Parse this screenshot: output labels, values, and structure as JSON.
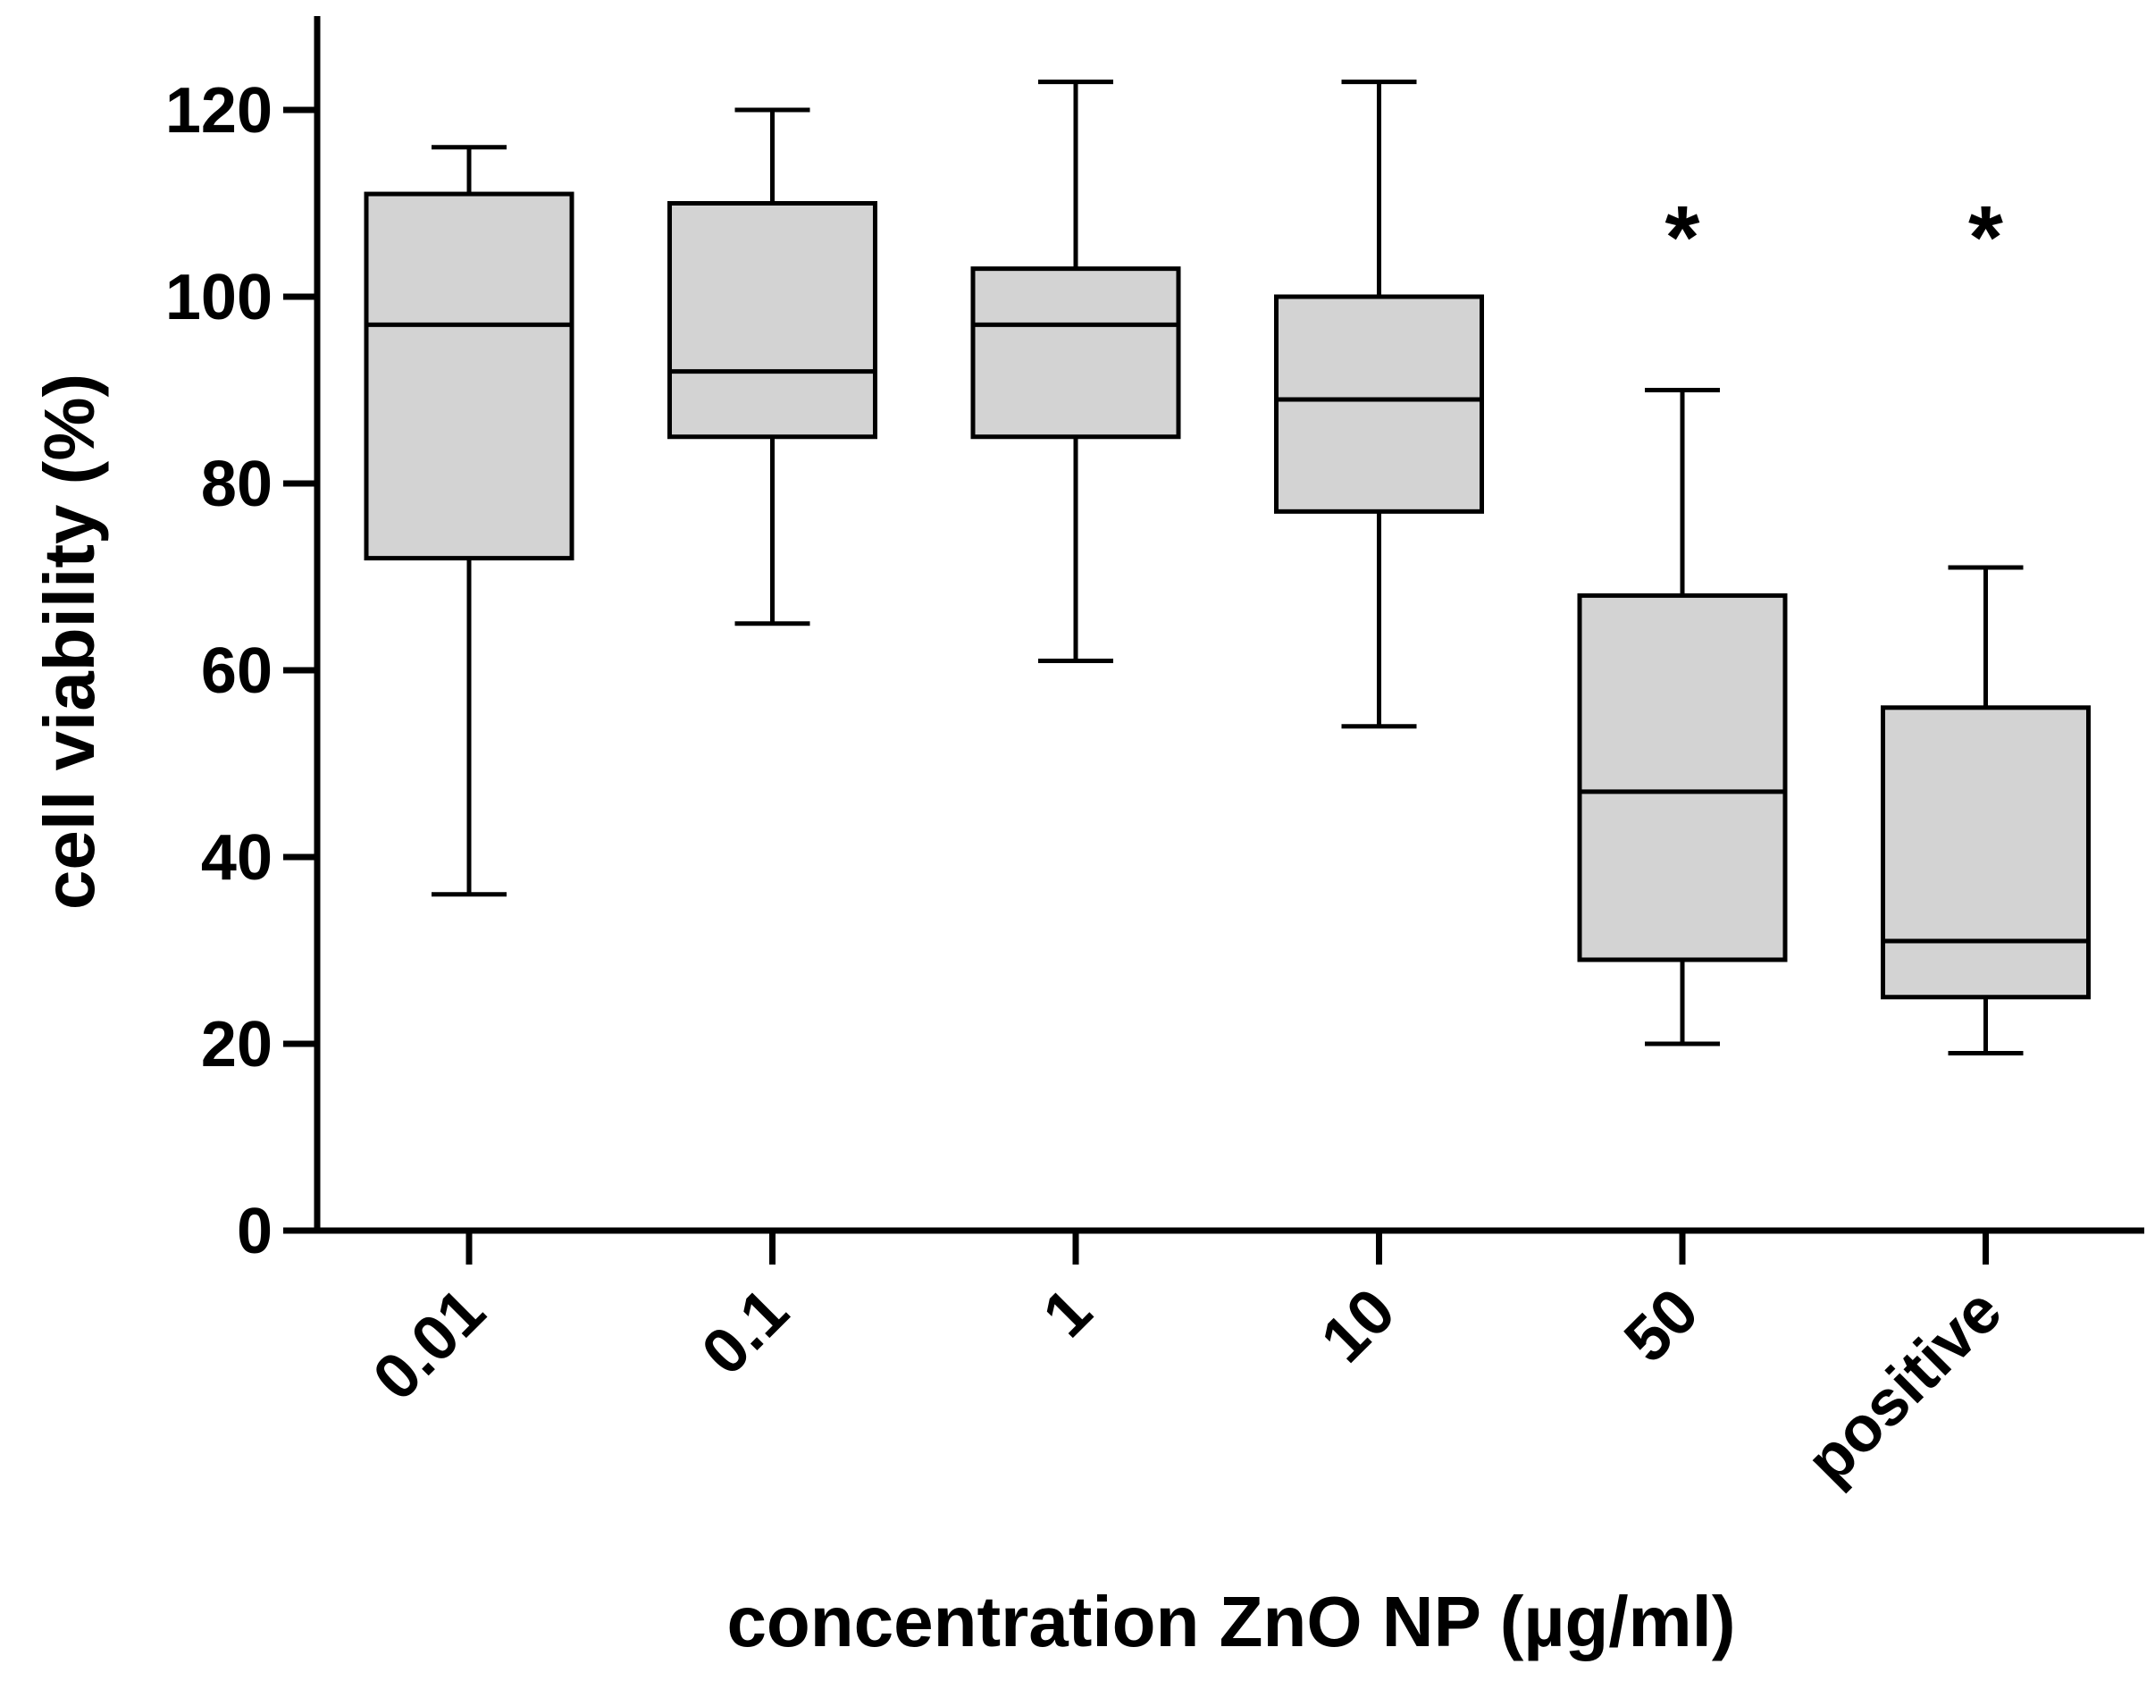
{
  "chart_data": {
    "type": "box",
    "title": "",
    "xlabel": "concentration ZnO NP (µg/ml)",
    "ylabel": "cell viability (%)",
    "ylim": [
      0,
      130
    ],
    "yticks": [
      0,
      20,
      40,
      60,
      80,
      100,
      120
    ],
    "ytick_labels": [
      "0",
      "20",
      "40",
      "60",
      "80",
      "100",
      "120"
    ],
    "grid": false,
    "categories": [
      "0.01",
      "0.1",
      "1",
      "10",
      "50",
      "positive"
    ],
    "boxes": [
      {
        "category": "0.01",
        "min": 36,
        "q1": 72,
        "median": 97,
        "q3": 111,
        "max": 116,
        "annotation": ""
      },
      {
        "category": "0.1",
        "min": 65,
        "q1": 85,
        "median": 92,
        "q3": 110,
        "max": 120,
        "annotation": ""
      },
      {
        "category": "1",
        "min": 61,
        "q1": 85,
        "median": 97,
        "q3": 103,
        "max": 123,
        "annotation": ""
      },
      {
        "category": "10",
        "min": 54,
        "q1": 77,
        "median": 89,
        "q3": 100,
        "max": 123,
        "annotation": ""
      },
      {
        "category": "50",
        "min": 20,
        "q1": 29,
        "median": 47,
        "q3": 68,
        "max": 90,
        "annotation": "*"
      },
      {
        "category": "positive",
        "min": 19,
        "q1": 25,
        "median": 31,
        "q3": 56,
        "max": 71,
        "annotation": "*"
      }
    ],
    "box_fill": "#d3d3d3",
    "line_color": "#000000"
  }
}
